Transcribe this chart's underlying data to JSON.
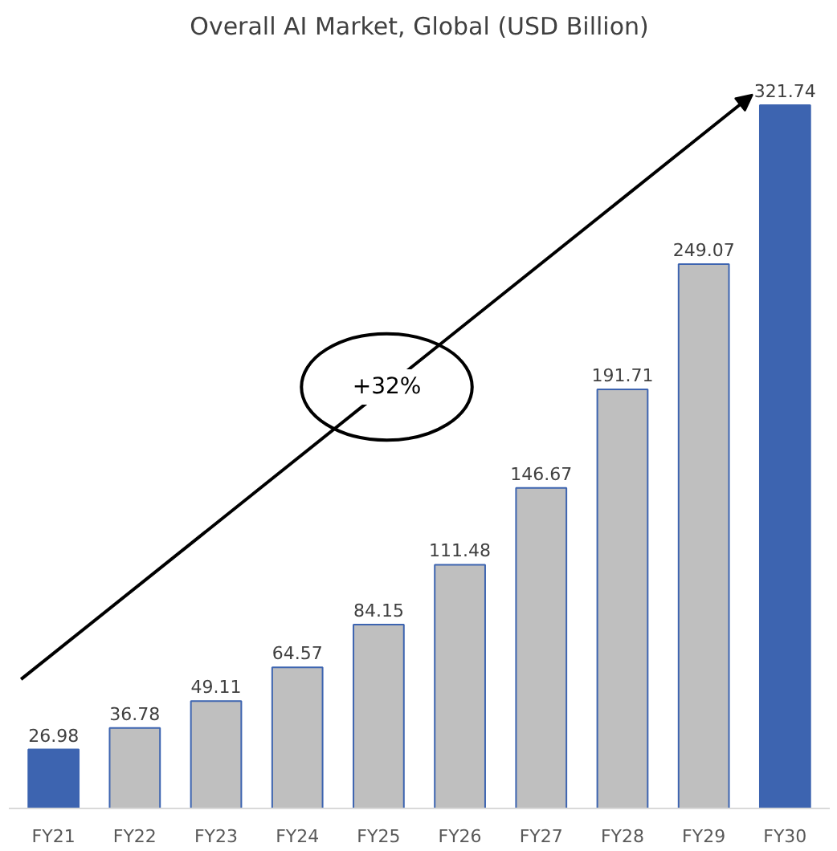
{
  "chart_data": {
    "type": "bar",
    "title": "Overall AI Market, Global (USD Billion)",
    "categories": [
      "FY21",
      "FY22",
      "FY23",
      "FY24",
      "FY25",
      "FY26",
      "FY27",
      "FY28",
      "FY29",
      "FY30"
    ],
    "values": [
      26.98,
      36.78,
      49.11,
      64.57,
      84.15,
      111.48,
      146.67,
      191.71,
      249.07,
      321.74
    ],
    "colors": [
      "#3d64b0",
      "#bfbfbf",
      "#bfbfbf",
      "#bfbfbf",
      "#bfbfbf",
      "#bfbfbf",
      "#bfbfbf",
      "#bfbfbf",
      "#bfbfbf",
      "#3d64b0"
    ],
    "data_labels": true,
    "grid": false,
    "annotations": [
      "+32%"
    ]
  }
}
